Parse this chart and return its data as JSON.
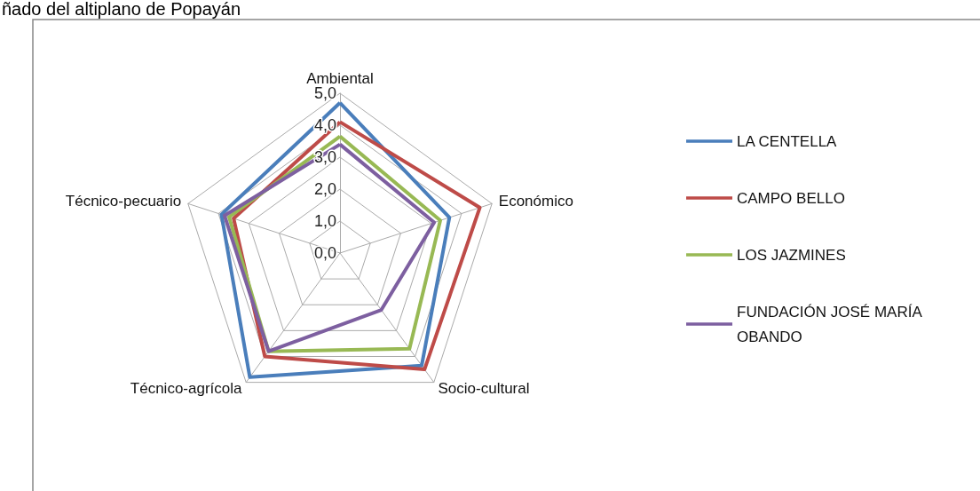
{
  "chart_data": {
    "type": "radar",
    "title": "ñado del altiplano de Popayán",
    "categories": [
      "Ambiental",
      "Económico",
      "Socio-cultural",
      "Técnico-agrícola",
      "Técnico-pecuario"
    ],
    "ylim": [
      0,
      5
    ],
    "yticks": [
      {
        "value": 0,
        "label": "0,0"
      },
      {
        "value": 1,
        "label": "1,0"
      },
      {
        "value": 2,
        "label": "2,0"
      },
      {
        "value": 3,
        "label": "3,0"
      },
      {
        "value": 4,
        "label": "4,0"
      },
      {
        "value": 5,
        "label": "5,0"
      }
    ],
    "grid": true,
    "legend": "right",
    "marker": "none",
    "line_style": "solid",
    "series": [
      {
        "name": "LA CENTELLA",
        "color": "#4a7ebb",
        "values": [
          4.7,
          3.6,
          4.35,
          4.8,
          3.9
        ]
      },
      {
        "name": "CAMPO BELLO",
        "color": "#be4b48",
        "values": [
          4.1,
          4.6,
          4.5,
          4.0,
          3.5
        ]
      },
      {
        "name": "LOS JAZMINES",
        "color": "#98b954",
        "values": [
          3.65,
          3.3,
          3.7,
          3.8,
          3.65
        ]
      },
      {
        "name": "FUNDACIÓN JOSÉ MARÍA OBANDO",
        "color": "#7d5fa0",
        "values": [
          3.4,
          3.1,
          2.2,
          3.8,
          3.8
        ]
      }
    ]
  }
}
